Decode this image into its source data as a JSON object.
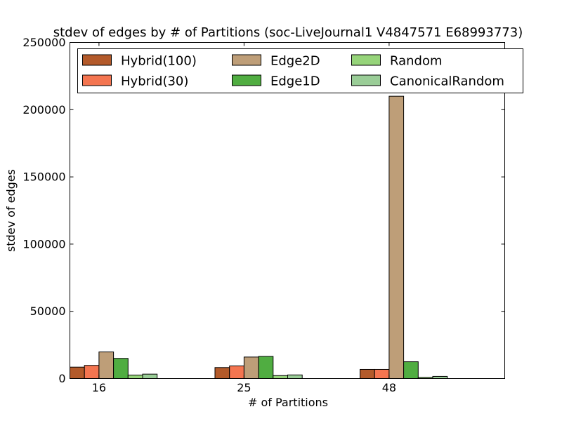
{
  "chart_data": {
    "type": "bar",
    "title": "stdev of edges by # of Partitions (soc-LiveJournal1 V4847571 E68993773)",
    "xlabel": "# of Partitions",
    "ylabel": "stdev of edges",
    "categories": [
      "16",
      "25",
      "48"
    ],
    "ylim": [
      0,
      250000
    ],
    "yticks": [
      0,
      50000,
      100000,
      150000,
      200000,
      250000
    ],
    "ytick_labels": [
      "0",
      "50000",
      "100000",
      "150000",
      "200000",
      "250000"
    ],
    "legend_position": "top",
    "series": [
      {
        "name": "Hybrid(100)",
        "color": "#b35a2a",
        "values": [
          8500,
          8200,
          6800
        ]
      },
      {
        "name": "Hybrid(30)",
        "color": "#f47550",
        "values": [
          9800,
          9400,
          6800
        ]
      },
      {
        "name": "Edge2D",
        "color": "#be9e78",
        "values": [
          19800,
          16000,
          210000
        ]
      },
      {
        "name": "Edge1D",
        "color": "#50ad41",
        "values": [
          15000,
          16500,
          12500
        ]
      },
      {
        "name": "Random",
        "color": "#96d47a",
        "values": [
          2600,
          2200,
          900
        ]
      },
      {
        "name": "CanonicalRandom",
        "color": "#9acd97",
        "values": [
          3300,
          2700,
          1600
        ]
      }
    ]
  }
}
